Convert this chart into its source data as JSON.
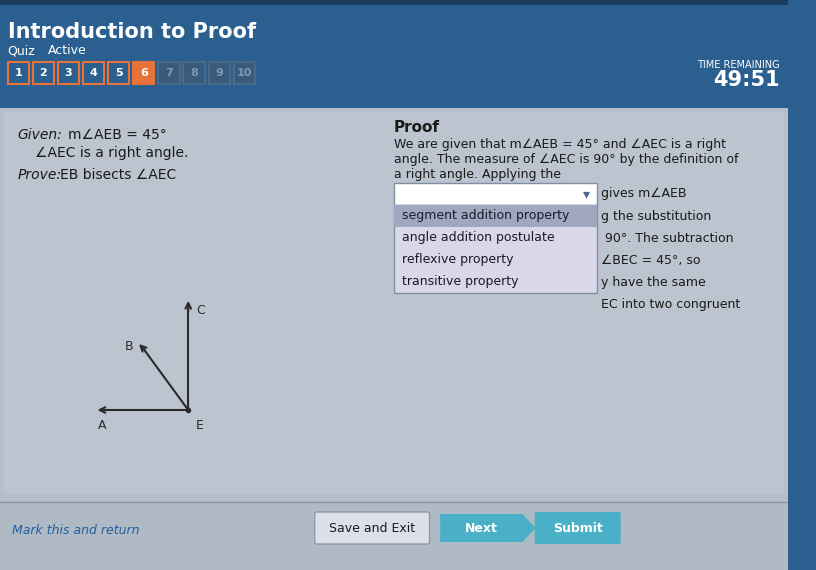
{
  "title": "Introduction to Proof",
  "subtitle_quiz": "Quiz",
  "subtitle_active": "Active",
  "header_bg": "#2a5f8f",
  "header_top_stripe": "#1a3a5c",
  "nav_numbers": [
    "1",
    "2",
    "3",
    "4",
    "5",
    "6",
    "7",
    "8",
    "9",
    "10"
  ],
  "time_label": "TIME REMAINING",
  "time_value": "49:51",
  "given_line1": "m∠AEB = 45°",
  "given_line2": "∠AEC is a right angle.",
  "prove_line": "EB bisects ∠AEC",
  "proof_title": "Proof",
  "proof_text1": "We are given that m∠AEB = 45° and ∠AEC is a right",
  "proof_text2": "angle. The measure of ∠AEC is 90° by the definition of",
  "proof_text3": "a right angle. Applying the",
  "proof_text4": "gives m∠AEB",
  "proof_text5": "g the substitution",
  "proof_text6": " 90°. The subtraction",
  "dropdown_items": [
    "segment addition property",
    "angle addition postulate",
    "reflexive property",
    "transitive property"
  ],
  "dropdown_highlight_item": "segment addition property",
  "right_text4": "∠BEC = 45°, so",
  "right_text5": "y have the same",
  "right_text6": "EC into two congruent",
  "mark_return": "Mark this and return",
  "btn_save": "Save and Exit",
  "btn_next": "Next",
  "btn_submit": "Submit",
  "btn_next_color": "#4ab0c8",
  "btn_submit_color": "#4ab0c8"
}
